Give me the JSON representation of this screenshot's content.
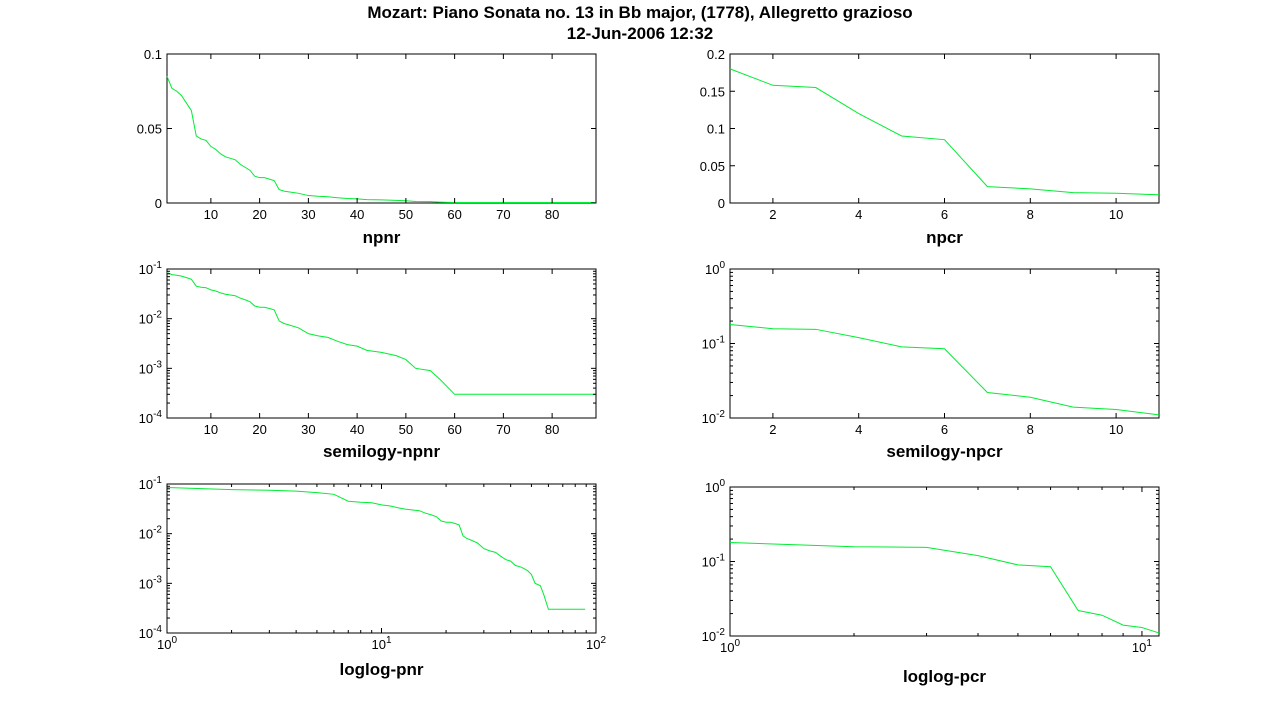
{
  "figure": {
    "title_line1": "Mozart: Piano Sonata no. 13 in Bb major, (1778), Allegretto grazioso",
    "title_line2": "12-Jun-2006 12:32",
    "line_color": "#00ee33"
  },
  "chart_data": [
    {
      "type": "line",
      "xlabel": "npnr",
      "xscale": "linear",
      "yscale": "linear",
      "xlim": [
        1,
        89
      ],
      "ylim": [
        0,
        0.1
      ],
      "xticks": [
        10,
        20,
        30,
        40,
        50,
        60,
        70,
        80
      ],
      "xticklabels": [
        "10",
        "20",
        "30",
        "40",
        "50",
        "60",
        "70",
        "80"
      ],
      "yticks": [
        0,
        0.05,
        0.1
      ],
      "yticklabels": [
        "0",
        "0.05",
        "0.1"
      ],
      "x": [
        1,
        2,
        3,
        4,
        5,
        6,
        7,
        8,
        9,
        10,
        11,
        12,
        13,
        14,
        15,
        16,
        17,
        18,
        19,
        20,
        21,
        22,
        23,
        24,
        25,
        26,
        28,
        30,
        32,
        34,
        36,
        38,
        40,
        42,
        45,
        48,
        50,
        52,
        55,
        57,
        60,
        65,
        70,
        75,
        80,
        85,
        89
      ],
      "y": [
        0.085,
        0.077,
        0.075,
        0.072,
        0.067,
        0.062,
        0.045,
        0.043,
        0.042,
        0.038,
        0.036,
        0.033,
        0.031,
        0.03,
        0.029,
        0.026,
        0.024,
        0.022,
        0.018,
        0.017,
        0.017,
        0.016,
        0.015,
        0.009,
        0.008,
        0.0075,
        0.0065,
        0.005,
        0.0045,
        0.0042,
        0.0035,
        0.003,
        0.0028,
        0.0023,
        0.0021,
        0.0018,
        0.0015,
        0.001,
        0.0009,
        0.0006,
        0.0003,
        0.0003,
        0.0003,
        0.0003,
        0.0003,
        0.0003,
        0.0003
      ]
    },
    {
      "type": "line",
      "xlabel": "npcr",
      "xscale": "linear",
      "yscale": "linear",
      "xlim": [
        1,
        11
      ],
      "ylim": [
        0,
        0.2
      ],
      "xticks": [
        2,
        4,
        6,
        8,
        10
      ],
      "xticklabels": [
        "2",
        "4",
        "6",
        "8",
        "10"
      ],
      "yticks": [
        0,
        0.05,
        0.1,
        0.15,
        0.2
      ],
      "yticklabels": [
        "0",
        "0.05",
        "0.1",
        "0.15",
        "0.2"
      ],
      "x": [
        1,
        2,
        3,
        4,
        5,
        6,
        7,
        8,
        9,
        10,
        11
      ],
      "y": [
        0.18,
        0.158,
        0.155,
        0.12,
        0.09,
        0.085,
        0.022,
        0.019,
        0.014,
        0.013,
        0.011
      ]
    },
    {
      "type": "line",
      "xlabel": "semilogy-npnr",
      "xscale": "linear",
      "yscale": "log",
      "xlim": [
        1,
        89
      ],
      "ylim": [
        0.0001,
        0.1
      ],
      "xticks": [
        10,
        20,
        30,
        40,
        50,
        60,
        70,
        80
      ],
      "xticklabels": [
        "10",
        "20",
        "30",
        "40",
        "50",
        "60",
        "70",
        "80"
      ],
      "yticks": [
        0.0001,
        0.001,
        0.01,
        0.1
      ],
      "yticklabels": [
        {
          "base": "10",
          "exp": "-4"
        },
        {
          "base": "10",
          "exp": "-3"
        },
        {
          "base": "10",
          "exp": "-2"
        },
        {
          "base": "10",
          "exp": "-1"
        }
      ],
      "x": [
        1,
        2,
        3,
        4,
        5,
        6,
        7,
        8,
        9,
        10,
        11,
        12,
        13,
        14,
        15,
        16,
        17,
        18,
        19,
        20,
        21,
        22,
        23,
        24,
        25,
        26,
        28,
        30,
        32,
        34,
        36,
        38,
        40,
        42,
        45,
        48,
        50,
        52,
        55,
        57,
        60,
        65,
        70,
        75,
        80,
        85,
        89
      ],
      "y": [
        0.085,
        0.077,
        0.075,
        0.072,
        0.067,
        0.062,
        0.045,
        0.043,
        0.042,
        0.038,
        0.036,
        0.033,
        0.031,
        0.03,
        0.029,
        0.026,
        0.024,
        0.022,
        0.018,
        0.017,
        0.017,
        0.016,
        0.015,
        0.009,
        0.008,
        0.0075,
        0.0065,
        0.005,
        0.0045,
        0.0042,
        0.0035,
        0.003,
        0.0028,
        0.0023,
        0.0021,
        0.0018,
        0.0015,
        0.001,
        0.0009,
        0.0006,
        0.0003,
        0.0003,
        0.0003,
        0.0003,
        0.0003,
        0.0003,
        0.0003
      ]
    },
    {
      "type": "line",
      "xlabel": "semilogy-npcr",
      "xscale": "linear",
      "yscale": "log",
      "xlim": [
        1,
        11
      ],
      "ylim": [
        0.01,
        1
      ],
      "xticks": [
        2,
        4,
        6,
        8,
        10
      ],
      "xticklabels": [
        "2",
        "4",
        "6",
        "8",
        "10"
      ],
      "yticks": [
        0.01,
        0.1,
        1
      ],
      "yticklabels": [
        {
          "base": "10",
          "exp": "-2"
        },
        {
          "base": "10",
          "exp": "-1"
        },
        {
          "base": "10",
          "exp": "0"
        }
      ],
      "x": [
        1,
        2,
        3,
        4,
        5,
        6,
        7,
        8,
        9,
        10,
        11
      ],
      "y": [
        0.18,
        0.158,
        0.155,
        0.12,
        0.09,
        0.085,
        0.022,
        0.019,
        0.014,
        0.013,
        0.011
      ]
    },
    {
      "type": "line",
      "xlabel": "loglog-pnr",
      "xscale": "log",
      "yscale": "log",
      "xlim": [
        1,
        100
      ],
      "ylim": [
        0.0001,
        0.1
      ],
      "xticks": [
        1,
        10,
        100
      ],
      "xticklabels": [
        {
          "base": "10",
          "exp": "0"
        },
        {
          "base": "10",
          "exp": "1"
        },
        {
          "base": "10",
          "exp": "2"
        }
      ],
      "yticks": [
        0.0001,
        0.001,
        0.01,
        0.1
      ],
      "yticklabels": [
        {
          "base": "10",
          "exp": "-4"
        },
        {
          "base": "10",
          "exp": "-3"
        },
        {
          "base": "10",
          "exp": "-2"
        },
        {
          "base": "10",
          "exp": "-1"
        }
      ],
      "x": [
        1,
        2,
        3,
        4,
        5,
        6,
        7,
        8,
        9,
        10,
        11,
        12,
        13,
        14,
        15,
        16,
        17,
        18,
        19,
        20,
        21,
        22,
        23,
        24,
        25,
        26,
        28,
        30,
        32,
        34,
        36,
        38,
        40,
        42,
        45,
        48,
        50,
        52,
        55,
        57,
        60,
        65,
        70,
        75,
        80,
        85,
        89
      ],
      "y": [
        0.085,
        0.077,
        0.075,
        0.072,
        0.067,
        0.062,
        0.045,
        0.043,
        0.042,
        0.038,
        0.036,
        0.033,
        0.031,
        0.03,
        0.029,
        0.026,
        0.024,
        0.022,
        0.018,
        0.017,
        0.017,
        0.016,
        0.015,
        0.009,
        0.008,
        0.0075,
        0.0065,
        0.005,
        0.0045,
        0.0042,
        0.0035,
        0.003,
        0.0028,
        0.0023,
        0.0021,
        0.0018,
        0.0015,
        0.001,
        0.0009,
        0.0006,
        0.0003,
        0.0003,
        0.0003,
        0.0003,
        0.0003,
        0.0003,
        0.0003
      ]
    },
    {
      "type": "line",
      "xlabel": "loglog-pcr",
      "xscale": "log",
      "yscale": "log",
      "xlim": [
        1,
        11
      ],
      "ylim": [
        0.01,
        1
      ],
      "xticks": [
        1,
        10
      ],
      "xticklabels": [
        {
          "base": "10",
          "exp": "0"
        },
        {
          "base": "10",
          "exp": "1"
        }
      ],
      "yticks": [
        0.01,
        0.1,
        1
      ],
      "yticklabels": [
        {
          "base": "10",
          "exp": "-2"
        },
        {
          "base": "10",
          "exp": "-1"
        },
        {
          "base": "10",
          "exp": "0"
        }
      ],
      "x": [
        1,
        2,
        3,
        4,
        5,
        6,
        7,
        8,
        9,
        10,
        11
      ],
      "y": [
        0.18,
        0.158,
        0.155,
        0.12,
        0.09,
        0.085,
        0.022,
        0.019,
        0.014,
        0.013,
        0.011
      ]
    }
  ]
}
